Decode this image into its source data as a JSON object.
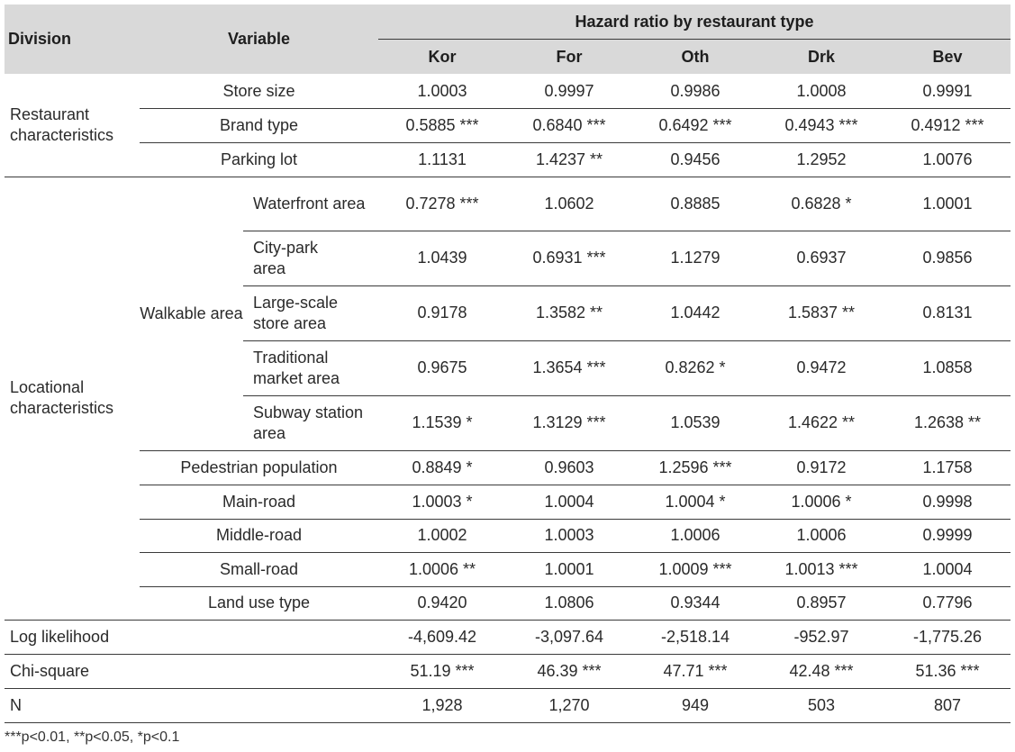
{
  "header": {
    "division": "Division",
    "variable": "Variable",
    "group_title": "Hazard ratio by restaurant type",
    "columns": [
      "Kor",
      "For",
      "Oth",
      "Drk",
      "Bev"
    ]
  },
  "groups": {
    "restaurant": "Restaurant characteristics",
    "locational": "Locational characteristics",
    "walkable": "Walkable area"
  },
  "rows": [
    {
      "variable": "Store size",
      "values": [
        "1.0003",
        "0.9997",
        "0.9986",
        "1.0008",
        "0.9991"
      ]
    },
    {
      "variable": "Brand type",
      "values": [
        "0.5885 ***",
        "0.6840 ***",
        "0.6492 ***",
        "0.4943 ***",
        "0.4912 ***"
      ]
    },
    {
      "variable": "Parking lot",
      "values": [
        "1.1131",
        "1.4237 **",
        "0.9456",
        "1.2952",
        "1.0076"
      ]
    },
    {
      "variable": "Waterfront area",
      "values": [
        "0.7278 ***",
        "1.0602",
        "0.8885",
        "0.6828 *",
        "1.0001"
      ]
    },
    {
      "variable": "City-park area",
      "values": [
        "1.0439",
        "0.6931 ***",
        "1.1279",
        "0.6937",
        "0.9856"
      ]
    },
    {
      "variable": "Large-scale store area",
      "values": [
        "0.9178",
        "1.3582 **",
        "1.0442",
        "1.5837 **",
        "0.8131"
      ]
    },
    {
      "variable": "Traditional market area",
      "values": [
        "0.9675",
        "1.3654 ***",
        "0.8262 *",
        "0.9472",
        "1.0858"
      ]
    },
    {
      "variable": "Subway station area",
      "values": [
        "1.1539 *",
        "1.3129 ***",
        "1.0539",
        "1.4622 **",
        "1.2638 **"
      ]
    },
    {
      "variable": "Pedestrian population",
      "values": [
        "0.8849 *",
        "0.9603",
        "1.2596 ***",
        "0.9172",
        "1.1758"
      ]
    },
    {
      "variable": "Main-road",
      "values": [
        "1.0003 *",
        "1.0004",
        "1.0004 *",
        "1.0006 *",
        "0.9998"
      ]
    },
    {
      "variable": "Middle-road",
      "values": [
        "1.0002",
        "1.0003",
        "1.0006",
        "1.0006",
        "0.9999"
      ]
    },
    {
      "variable": "Small-road",
      "values": [
        "1.0006 **",
        "1.0001",
        "1.0009 ***",
        "1.0013 ***",
        "1.0004"
      ]
    },
    {
      "variable": "Land use type",
      "values": [
        "0.9420",
        "1.0806",
        "0.9344",
        "0.8957",
        "0.7796"
      ]
    },
    {
      "variable": "Log likelihood",
      "values": [
        "-4,609.42",
        "-3,097.64",
        "-2,518.14",
        "-952.97",
        "-1,775.26"
      ]
    },
    {
      "variable": "Chi-square",
      "values": [
        "51.19 ***",
        "46.39 ***",
        "47.71 ***",
        "42.48 ***",
        "51.36 ***"
      ]
    },
    {
      "variable": "N",
      "values": [
        "1,928",
        "1,270",
        "949",
        "503",
        "807"
      ]
    }
  ],
  "footnote": "***p<0.01, **p<0.05, *p<0.1"
}
